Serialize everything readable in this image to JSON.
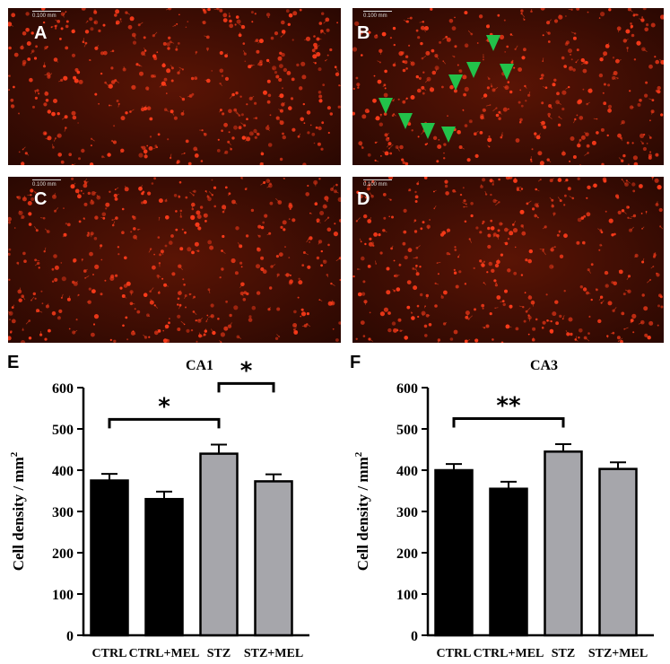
{
  "micrographs": [
    {
      "label": "A",
      "scale": "0.100 mm",
      "markers": []
    },
    {
      "label": "B",
      "scale": "0.100 mm",
      "markers": [
        [
          550,
          48
        ],
        [
          528,
          78
        ],
        [
          508,
          92
        ],
        [
          565,
          80
        ],
        [
          430,
          118
        ],
        [
          452,
          135
        ],
        [
          477,
          146
        ],
        [
          500,
          150
        ]
      ]
    },
    {
      "label": "C",
      "scale": "0.100 mm",
      "markers": []
    },
    {
      "label": "D",
      "scale": "0.100 mm",
      "markers": []
    }
  ],
  "colors": {
    "ctrl": "#000000",
    "stz": "#a6a6ab",
    "cell": "#ff3b1a",
    "marker": "#22c24a"
  },
  "chart_data": [
    {
      "type": "bar",
      "panel_label": "E",
      "title": "CA1",
      "ylabel": "Cell density / mm",
      "ylabel_sup": "2",
      "categories": [
        "CTRL",
        "CTRL+MEL",
        "STZ",
        "STZ+MEL"
      ],
      "values": [
        375,
        330,
        440,
        373
      ],
      "errors": [
        16,
        18,
        22,
        17
      ],
      "bar_colors": [
        "#000000",
        "#000000",
        "#a6a6ab",
        "#a6a6ab"
      ],
      "ylim": [
        0,
        600
      ],
      "yticks": [
        0,
        100,
        200,
        300,
        400,
        500,
        600
      ],
      "significance": [
        {
          "from": 0,
          "to": 2,
          "label": "*",
          "y": 523
        },
        {
          "from": 2,
          "to": 3,
          "label": "*",
          "y": 610
        }
      ]
    },
    {
      "type": "bar",
      "panel_label": "F",
      "title": "CA3",
      "ylabel": "Cell density / mm",
      "ylabel_sup": "2",
      "categories": [
        "CTRL",
        "CTRL+MEL",
        "STZ",
        "STZ+MEL"
      ],
      "values": [
        400,
        355,
        445,
        403
      ],
      "errors": [
        15,
        17,
        18,
        16
      ],
      "bar_colors": [
        "#000000",
        "#000000",
        "#a6a6ab",
        "#a6a6ab"
      ],
      "ylim": [
        0,
        600
      ],
      "yticks": [
        0,
        100,
        200,
        300,
        400,
        500,
        600
      ],
      "significance": [
        {
          "from": 0,
          "to": 2,
          "label": "**",
          "y": 525
        }
      ]
    }
  ]
}
